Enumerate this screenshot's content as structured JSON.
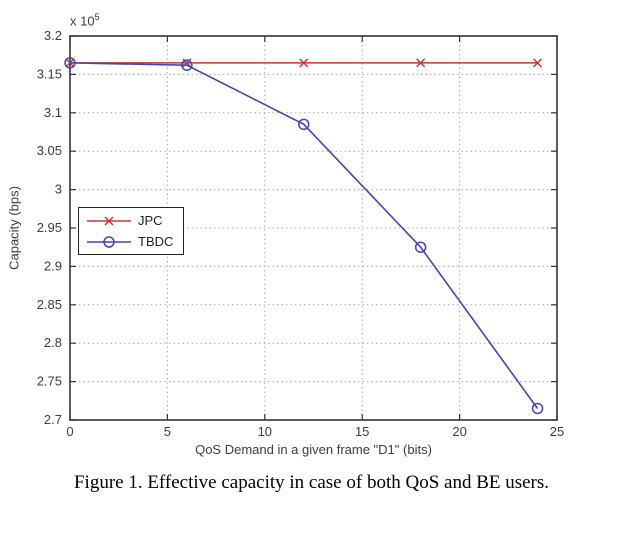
{
  "figure": {
    "caption": "Figure 1. Effective capacity in case of both QoS and BE users."
  },
  "chart_data": {
    "type": "line",
    "title": "",
    "xlabel": "QoS Demand in a given frame \"D1\" (bits)",
    "ylabel": "Capacity (bps)",
    "y_scale_label": {
      "base": "x 10",
      "exponent": "5"
    },
    "y_scale_factor": 100000,
    "xlim": [
      0,
      25
    ],
    "ylim": [
      2.7,
      3.2
    ],
    "x_ticks": [
      0,
      5,
      10,
      15,
      20,
      25
    ],
    "x_tick_labels": [
      "0",
      "5",
      "10",
      "15",
      "20",
      "25"
    ],
    "y_ticks": [
      2.7,
      2.75,
      2.8,
      2.85,
      2.9,
      2.95,
      3,
      3.05,
      3.1,
      3.15,
      3.2
    ],
    "y_tick_labels": [
      "2.7",
      "2.75",
      "2.8",
      "2.85",
      "2.9",
      "2.95",
      "3",
      "3.05",
      "3.1",
      "3.15",
      "3.2"
    ],
    "grid": true,
    "legend_position": "left-middle",
    "series": [
      {
        "name": "JPC",
        "color": "#cc3333",
        "marker": "x",
        "x": [
          0,
          6,
          12,
          18,
          24
        ],
        "y": [
          3.165,
          3.165,
          3.165,
          3.165,
          3.165
        ]
      },
      {
        "name": "TBDC",
        "color": "#4444bb",
        "marker": "o",
        "x": [
          0,
          6,
          12,
          18,
          24
        ],
        "y": [
          3.165,
          3.162,
          3.085,
          2.925,
          2.715
        ]
      }
    ]
  }
}
